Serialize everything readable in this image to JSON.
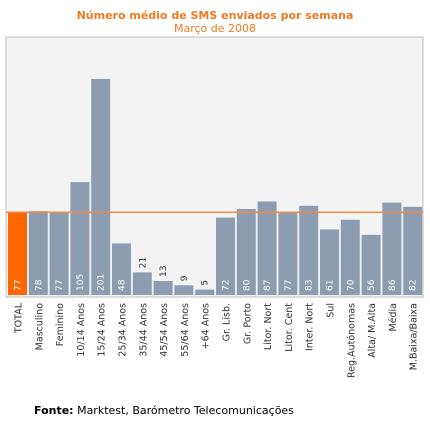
{
  "chart_data": {
    "type": "bar",
    "title": "Número médio de SMS enviados por semana",
    "subtitle": "Março de 2008",
    "categories": [
      "TOTAL",
      "Masculino",
      "Feminino",
      "10/14 Anos",
      "15/24 Anos",
      "25/34 Anos",
      "35/44 Anos",
      "45/54 Anos",
      "55/64 Anos",
      "+64 Anos",
      "Gr. Lisb.",
      "Gr. Porto",
      "Litor. Nort",
      "Litor. Cent",
      "Inter. Nort",
      "Sul",
      "Reg.Autónomas",
      "Alta/ M.Alta",
      "Média",
      "M.Baixa/Baixa"
    ],
    "values": [
      77,
      78,
      77,
      105,
      201,
      48,
      21,
      13,
      9,
      5,
      72,
      80,
      87,
      77,
      83,
      61,
      70,
      56,
      86,
      82
    ],
    "value_labels": [
      "77",
      "78",
      "77",
      "105",
      "201",
      "48",
      "21",
      "13",
      "9",
      "5",
      "72",
      "80",
      "87",
      "77",
      "83",
      "61",
      "70",
      "56",
      "86",
      "82"
    ],
    "reference_line": 77,
    "ylim": [
      0,
      240
    ],
    "grid": false,
    "colors": {
      "bar": "#8c9db2",
      "highlight_bar": "#ff6600",
      "reference_line": "#f08c4a",
      "plot_background": "#f3f3f3",
      "title": "#f07a1e"
    }
  },
  "source": {
    "label": "Fonte:",
    "text": " Marktest, Barómetro Telecomunicações"
  }
}
